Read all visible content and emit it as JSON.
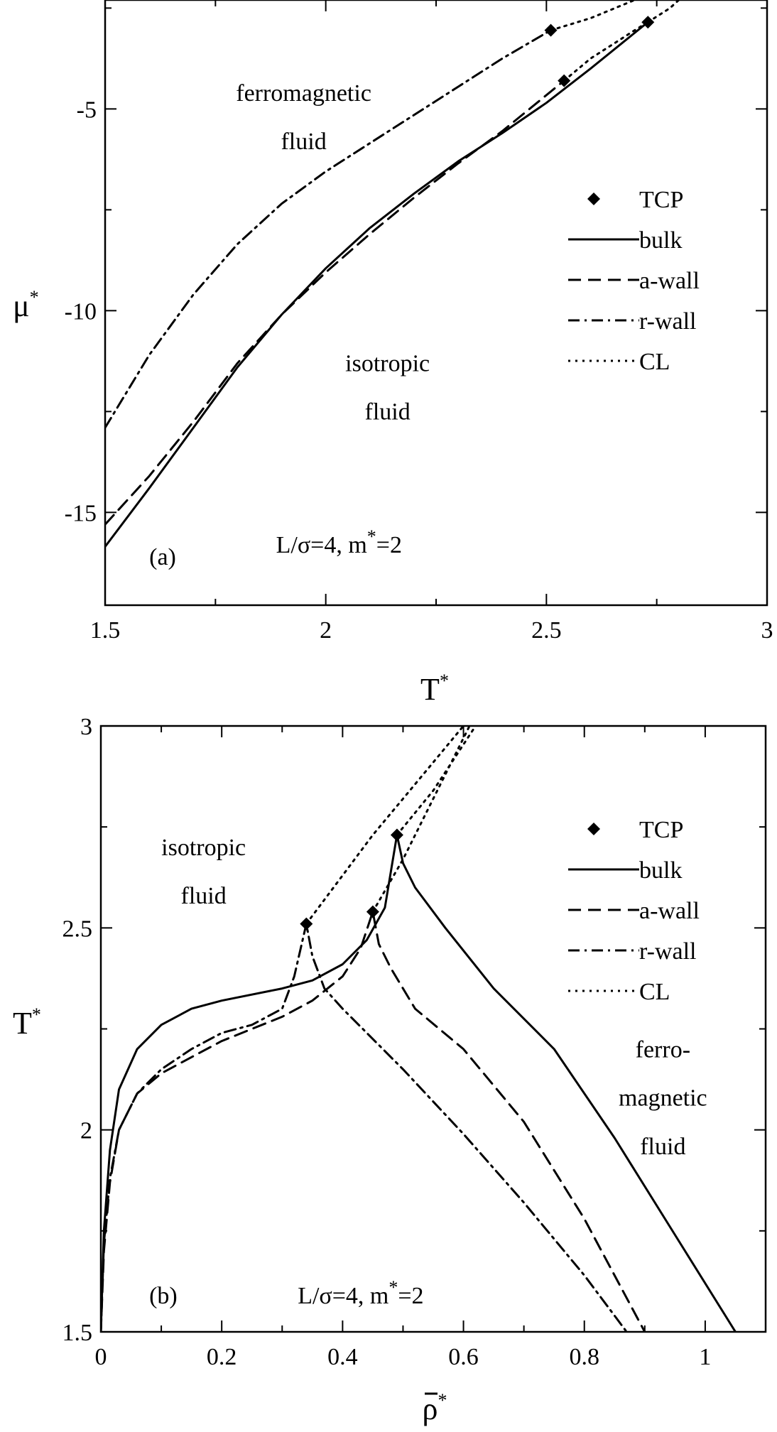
{
  "chart_data": [
    {
      "type": "line",
      "panel_label": "(a)",
      "xlabel": "T",
      "ylabel": "μ",
      "xlim": [
        1.5,
        3.0
      ],
      "ylim": [
        -17.3,
        -2.3
      ],
      "xticks": [
        1.5,
        2,
        2.5,
        3
      ],
      "xtick_labels": [
        "1.5",
        "2",
        "2.5",
        "3"
      ],
      "yticks": [
        -5,
        -10,
        -15
      ],
      "ytick_labels": [
        "-5",
        "-10",
        "-15"
      ],
      "grid": false,
      "legend_position": "right",
      "annotations": [
        {
          "text": "ferromagnetic",
          "x": 1.95,
          "y": -4.8
        },
        {
          "text": "fluid",
          "x": 1.95,
          "y": -6.0
        },
        {
          "text": "isotropic",
          "x": 2.14,
          "y": -11.5
        },
        {
          "text": "fluid",
          "x": 2.14,
          "y": -12.7
        },
        {
          "text": "(a)",
          "x": 1.6,
          "y": -16.3
        },
        {
          "text": "L/σ=4,  m",
          "x": 2.03,
          "y": -16.0
        }
      ],
      "annotation_suffix": "=2",
      "series": [
        {
          "name": "bulk",
          "style": "solid",
          "x": [
            1.5,
            1.6,
            1.7,
            1.8,
            1.9,
            2.0,
            2.1,
            2.2,
            2.3,
            2.4,
            2.5,
            2.6,
            2.73
          ],
          "y": [
            -15.85,
            -14.4,
            -12.9,
            -11.4,
            -10.1,
            -8.95,
            -7.95,
            -7.1,
            -6.3,
            -5.6,
            -4.85,
            -4.0,
            -2.85
          ]
        },
        {
          "name": "a-wall",
          "style": "dashed",
          "x": [
            1.5,
            1.6,
            1.7,
            1.8,
            1.9,
            2.0,
            2.1,
            2.2,
            2.3,
            2.4,
            2.54
          ],
          "y": [
            -15.3,
            -14.1,
            -12.75,
            -11.3,
            -10.1,
            -9.05,
            -8.1,
            -7.2,
            -6.35,
            -5.55,
            -4.3
          ]
        },
        {
          "name": "r-wall",
          "style": "dashdot",
          "x": [
            1.5,
            1.6,
            1.7,
            1.8,
            1.9,
            2.0,
            2.1,
            2.2,
            2.3,
            2.4,
            2.51
          ],
          "y": [
            -12.9,
            -11.1,
            -9.6,
            -8.35,
            -7.35,
            -6.55,
            -5.85,
            -5.15,
            -4.45,
            -3.75,
            -3.05
          ]
        },
        {
          "name": "CL",
          "style": "dotted",
          "x": [
            2.51,
            2.6,
            2.7,
            2.8
          ],
          "y": [
            -3.05,
            -2.75,
            -2.3,
            -1.75
          ]
        },
        {
          "name": "CL",
          "style": "dotted",
          "x": [
            2.54,
            2.6,
            2.7,
            2.73
          ],
          "y": [
            -4.3,
            -3.75,
            -3.05,
            -2.85
          ]
        },
        {
          "name": "CL",
          "style": "dotted",
          "x": [
            2.73,
            2.78,
            2.82
          ],
          "y": [
            -2.85,
            -2.5,
            -2.1
          ]
        }
      ],
      "tcp": {
        "name": "TCP",
        "x": [
          2.51,
          2.54,
          2.73
        ],
        "y": [
          -3.05,
          -4.3,
          -2.85
        ]
      },
      "legend": [
        "TCP",
        "bulk",
        "a-wall",
        "r-wall",
        "CL"
      ]
    },
    {
      "type": "line",
      "panel_label": "(b)",
      "xlabel": "ρ",
      "ylabel": "T",
      "xlim": [
        0,
        1.1
      ],
      "ylim": [
        1.5,
        3.0
      ],
      "xticks": [
        0,
        0.2,
        0.4,
        0.6,
        0.8,
        1
      ],
      "xtick_labels": [
        "0",
        "0.2",
        "0.4",
        "0.6",
        "0.8",
        "1"
      ],
      "yticks": [
        1.5,
        2,
        2.5,
        3
      ],
      "ytick_labels": [
        "1.5",
        "2",
        "2.5",
        "3"
      ],
      "grid": false,
      "legend_position": "right",
      "annotations": [
        {
          "text": "isotropic",
          "x": 0.17,
          "y": 2.68
        },
        {
          "text": "fluid",
          "x": 0.17,
          "y": 2.56
        },
        {
          "text": "ferro-",
          "x": 0.93,
          "y": 2.18
        },
        {
          "text": "magnetic",
          "x": 0.93,
          "y": 2.06
        },
        {
          "text": "fluid",
          "x": 0.93,
          "y": 1.94
        },
        {
          "text": "(b)",
          "x": 0.08,
          "y": 1.57
        },
        {
          "text": "L/σ=4,  m",
          "x": 0.43,
          "y": 1.57
        }
      ],
      "annotation_suffix": "=2",
      "series": [
        {
          "name": "bulk",
          "style": "solid",
          "x": [
            0.0,
            0.005,
            0.015,
            0.03,
            0.06,
            0.1,
            0.15,
            0.2,
            0.3,
            0.35,
            0.4,
            0.44,
            0.47,
            0.49,
            0.5,
            0.52,
            0.57,
            0.65,
            0.75,
            0.85,
            0.95,
            1.05
          ],
          "y": [
            1.5,
            1.75,
            1.95,
            2.1,
            2.2,
            2.26,
            2.3,
            2.32,
            2.35,
            2.37,
            2.41,
            2.47,
            2.55,
            2.73,
            2.66,
            2.6,
            2.5,
            2.35,
            2.2,
            1.98,
            1.74,
            1.5
          ]
        },
        {
          "name": "a-wall",
          "style": "dashed",
          "x": [
            0.0,
            0.005,
            0.015,
            0.03,
            0.06,
            0.1,
            0.15,
            0.2,
            0.25,
            0.3,
            0.35,
            0.4,
            0.43,
            0.45,
            0.46,
            0.48,
            0.52,
            0.6,
            0.7,
            0.8,
            0.9
          ],
          "y": [
            1.5,
            1.7,
            1.87,
            2.0,
            2.09,
            2.14,
            2.18,
            2.22,
            2.25,
            2.28,
            2.32,
            2.38,
            2.45,
            2.54,
            2.46,
            2.4,
            2.3,
            2.2,
            2.02,
            1.78,
            1.5
          ]
        },
        {
          "name": "r-wall",
          "style": "dashdot",
          "x": [
            0.0,
            0.005,
            0.015,
            0.03,
            0.06,
            0.1,
            0.15,
            0.2,
            0.25,
            0.3,
            0.32,
            0.34,
            0.35,
            0.37,
            0.4,
            0.5,
            0.6,
            0.7,
            0.8,
            0.87
          ],
          "y": [
            1.5,
            1.72,
            1.88,
            2.0,
            2.09,
            2.15,
            2.2,
            2.24,
            2.26,
            2.3,
            2.38,
            2.51,
            2.43,
            2.35,
            2.3,
            2.15,
            1.99,
            1.82,
            1.64,
            1.5
          ]
        },
        {
          "name": "CL",
          "style": "dotted",
          "x": [
            0.34,
            0.4,
            0.45,
            0.5,
            0.55,
            0.6
          ],
          "y": [
            2.51,
            2.63,
            2.73,
            2.82,
            2.91,
            3.0
          ]
        },
        {
          "name": "CL",
          "style": "dotted",
          "x": [
            0.45,
            0.5,
            0.55,
            0.61
          ],
          "y": [
            2.54,
            2.67,
            2.82,
            3.0
          ]
        },
        {
          "name": "CL",
          "style": "dotted",
          "x": [
            0.49,
            0.55,
            0.62
          ],
          "y": [
            2.73,
            2.84,
            3.0
          ]
        }
      ],
      "tcp": {
        "name": "TCP",
        "x": [
          0.34,
          0.45,
          0.49
        ],
        "y": [
          2.51,
          2.54,
          2.73
        ]
      },
      "legend": [
        "TCP",
        "bulk",
        "a-wall",
        "r-wall",
        "CL"
      ]
    }
  ]
}
